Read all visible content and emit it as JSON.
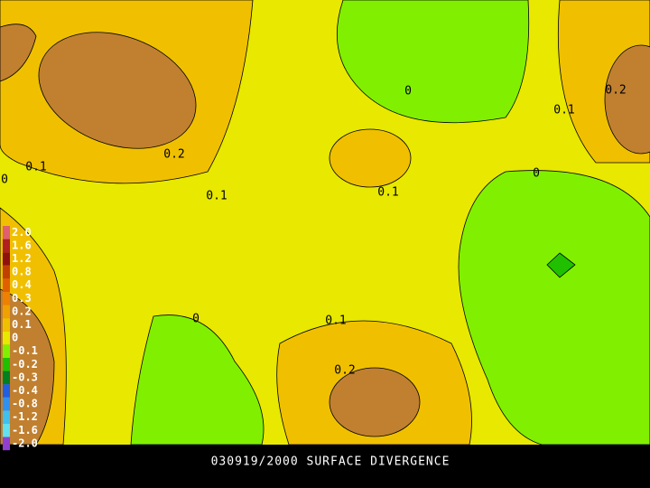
{
  "caption": "030919/2000 SURFACE DIVERGENCE",
  "legend": [
    {
      "label": "2.0",
      "color": "#e06070"
    },
    {
      "label": "1.6",
      "color": "#b02020"
    },
    {
      "label": "1.2",
      "color": "#901010"
    },
    {
      "label": "0.8",
      "color": "#c04000"
    },
    {
      "label": "0.4",
      "color": "#e06000"
    },
    {
      "label": "0.3",
      "color": "#f08000"
    },
    {
      "label": "0.2",
      "color": "#f0a000"
    },
    {
      "label": "0.1",
      "color": "#f0c000"
    },
    {
      "label": "0",
      "color": "#e8e800"
    },
    {
      "label": "-0.1",
      "color": "#80f000"
    },
    {
      "label": "-0.2",
      "color": "#20c000"
    },
    {
      "label": "-0.3",
      "color": "#008020"
    },
    {
      "label": "-0.4",
      "color": "#2060e0"
    },
    {
      "label": "-0.8",
      "color": "#3090f0"
    },
    {
      "label": "-1.2",
      "color": "#40c0f0"
    },
    {
      "label": "-1.6",
      "color": "#60e0f0"
    },
    {
      "label": "-2.0",
      "color": "#9040d0"
    }
  ],
  "contour_labels": [
    "0",
    "0.2",
    "0.1",
    "0.1",
    "0.2",
    "0.1",
    "0.1",
    "0",
    "0",
    "0.1",
    "0.2",
    "0"
  ]
}
